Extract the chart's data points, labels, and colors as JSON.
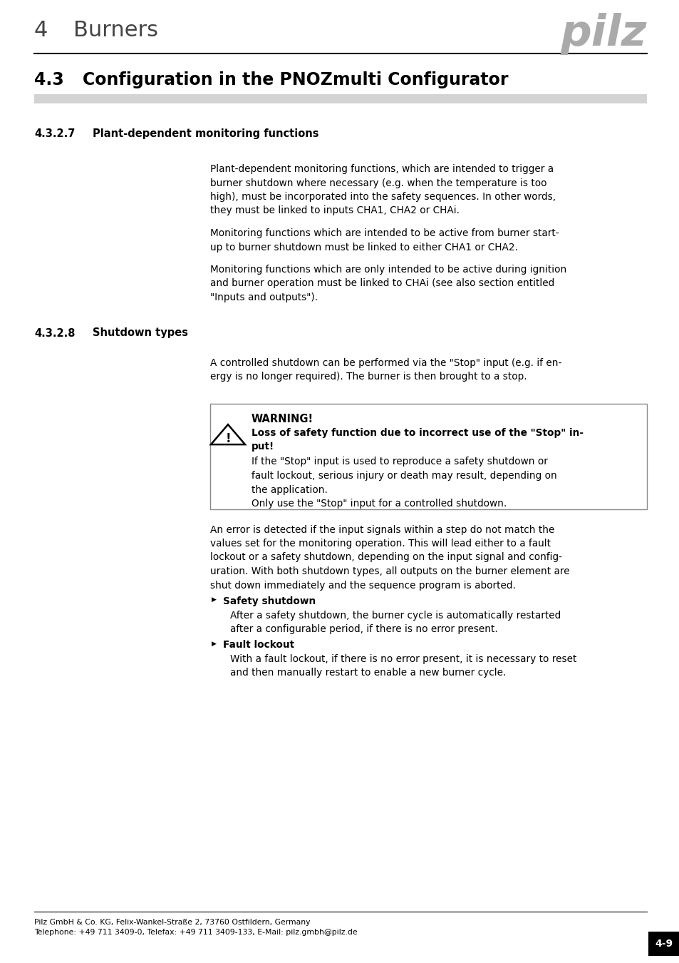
{
  "page_bg": "#ffffff",
  "pilz_logo_color": "#aaaaaa",
  "header_line_color": "#000000",
  "subsection_bar_color": "#d3d3d3",
  "para1_lines": [
    "Plant-dependent monitoring functions, which are intended to trigger a",
    "burner shutdown where necessary (e.g. when the temperature is too",
    "high), must be incorporated into the safety sequences. In other words,",
    "they must be linked to inputs CHA1, CHA2 or CHAi."
  ],
  "para2_lines": [
    "Monitoring functions which are intended to be active from burner start-",
    "up to burner shutdown must be linked to either CHA1 or CHA2."
  ],
  "para3_lines": [
    "Monitoring functions which are only intended to be active during ignition",
    "and burner operation must be linked to CHAi (see also section entitled",
    "\"Inputs and outputs\")."
  ],
  "para_sd_lines": [
    "A controlled shutdown can be performed via the \"Stop\" input (e.g. if en-",
    "ergy is no longer required). The burner is then brought to a stop."
  ],
  "warn_bold_line1": "Loss of safety function due to incorrect use of the \"Stop\" in-",
  "warn_bold_line2": "put!",
  "warn_body_lines": [
    "If the \"Stop\" input is used to reproduce a safety shutdown or",
    "fault lockout, serious injury or death may result, depending on",
    "the application.",
    "Only use the \"Stop\" input for a controlled shutdown."
  ],
  "para_err_lines": [
    "An error is detected if the input signals within a step do not match the",
    "values set for the monitoring operation. This will lead either to a fault",
    "lockout or a safety shutdown, depending on the input signal and config-",
    "uration. With both shutdown types, all outputs on the burner element are",
    "shut down immediately and the sequence program is aborted."
  ],
  "bullet1_body_lines": [
    "After a safety shutdown, the burner cycle is automatically restarted",
    "after a configurable period, if there is no error present."
  ],
  "bullet2_body_lines": [
    "With a fault lockout, if there is no error present, it is necessary to reset",
    "and then manually restart to enable a new burner cycle."
  ],
  "footer_line1": "Pilz GmbH & Co. KG, Felix-Wankel-Straße 2, 73760 Ostfildern, Germany",
  "footer_line2": "Telephone: +49 711 3409-0, Telefax: +49 711 3409-133, E-Mail: pilz.gmbh@pilz.de",
  "page_label": "4-9"
}
